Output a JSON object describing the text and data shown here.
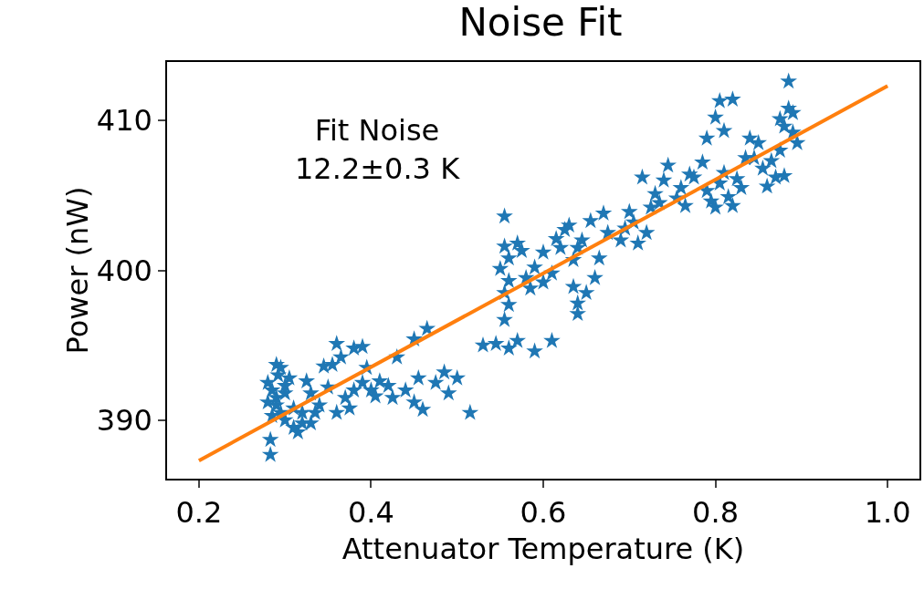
{
  "chart_data": {
    "type": "scatter",
    "title": "Noise Fit",
    "xlabel": "Attenuator Temperature (K)",
    "ylabel": "Power (nW)",
    "xlim": [
      0.163,
      1.037
    ],
    "xticks": [
      {
        "value": 0.2,
        "label": "0.2"
      },
      {
        "value": 0.4,
        "label": "0.4"
      },
      {
        "value": 0.6,
        "label": "0.6"
      },
      {
        "value": 0.8,
        "label": "0.8"
      },
      {
        "value": 1.0,
        "label": "1.0"
      }
    ],
    "ylim": [
      386.1,
      413.9
    ],
    "yticks": [
      390,
      400,
      410
    ],
    "grid": false,
    "annotations": [
      "Fit Noise\n12.2±0.3 K"
    ],
    "series": [
      {
        "marker": "star",
        "color": "#1f77b4",
        "x": [
          0.283,
          0.283,
          0.29,
          0.295,
          0.28,
          0.285,
          0.29,
          0.29,
          0.295,
          0.3,
          0.285,
          0.3,
          0.31,
          0.31,
          0.315,
          0.32,
          0.3,
          0.305,
          0.325,
          0.33,
          0.32,
          0.335,
          0.34,
          0.33,
          0.28,
          0.292,
          0.345,
          0.355,
          0.365,
          0.36,
          0.38,
          0.39,
          0.37,
          0.36,
          0.375,
          0.38,
          0.39,
          0.4,
          0.41,
          0.405,
          0.42,
          0.425,
          0.43,
          0.44,
          0.45,
          0.455,
          0.46,
          0.465,
          0.45,
          0.485,
          0.49,
          0.5,
          0.515,
          0.475,
          0.395,
          0.35,
          0.53,
          0.545,
          0.56,
          0.57,
          0.59,
          0.61,
          0.555,
          0.555,
          0.56,
          0.55,
          0.56,
          0.555,
          0.56,
          0.555,
          0.575,
          0.58,
          0.57,
          0.585,
          0.59,
          0.6,
          0.6,
          0.61,
          0.615,
          0.62,
          0.625,
          0.63,
          0.635,
          0.64,
          0.645,
          0.635,
          0.64,
          0.64,
          0.65,
          0.66,
          0.655,
          0.67,
          0.665,
          0.675,
          0.69,
          0.695,
          0.7,
          0.705,
          0.71,
          0.72,
          0.715,
          0.725,
          0.73,
          0.735,
          0.74,
          0.745,
          0.755,
          0.76,
          0.765,
          0.77,
          0.775,
          0.785,
          0.79,
          0.795,
          0.8,
          0.805,
          0.81,
          0.79,
          0.8,
          0.805,
          0.82,
          0.81,
          0.815,
          0.82,
          0.825,
          0.83,
          0.835,
          0.84,
          0.845,
          0.85,
          0.855,
          0.86,
          0.865,
          0.87,
          0.875,
          0.88,
          0.885,
          0.89,
          0.89,
          0.895,
          0.885,
          0.88,
          0.875
        ],
        "values": [
          387.7,
          388.7,
          393.7,
          393.5,
          392.5,
          392,
          391.5,
          391,
          390.5,
          390,
          390.3,
          392.3,
          390.8,
          389.5,
          389.2,
          389.8,
          391.8,
          392.8,
          392.6,
          391.8,
          390.5,
          390.5,
          391,
          389.8,
          391.2,
          393,
          393.6,
          393.7,
          394.2,
          395.1,
          394.8,
          394.9,
          391.5,
          390.5,
          390.8,
          392,
          392.5,
          392,
          392.6,
          391.6,
          392.3,
          391.5,
          394.2,
          392,
          391.2,
          392.8,
          390.7,
          396.1,
          395.4,
          393.2,
          391.8,
          392.8,
          390.5,
          392.5,
          393.5,
          392.2,
          395,
          395.1,
          394.8,
          395.3,
          394.6,
          395.3,
          403.6,
          401.6,
          400.8,
          400.1,
          399.3,
          398.5,
          397.7,
          396.7,
          401.3,
          399.5,
          401.8,
          398.8,
          400.2,
          401.2,
          399.2,
          399.8,
          402.1,
          401.5,
          402.7,
          403,
          400.7,
          401.5,
          402,
          398.9,
          397.8,
          397.1,
          398.5,
          399.5,
          403.3,
          403.8,
          400.8,
          402.5,
          402,
          402.8,
          403.9,
          403.2,
          401.8,
          402.5,
          406.2,
          404.2,
          405.1,
          404.5,
          406,
          407,
          404.8,
          405.5,
          404.3,
          406.4,
          406.2,
          407.2,
          405.3,
          404.6,
          404.2,
          405.8,
          406.5,
          408.8,
          410.2,
          411.3,
          411.4,
          409.3,
          404.9,
          404.3,
          406.1,
          405.5,
          407.5,
          408.8,
          407.5,
          408.5,
          406.8,
          405.6,
          407.3,
          406.2,
          410.1,
          409.6,
          412.6,
          410.5,
          409.2,
          408.5,
          410.8,
          406.3,
          408
        ]
      },
      {
        "type": "line",
        "color": "#ff7f0e",
        "x": [
          0.2,
          1.0
        ],
        "values": [
          387.3,
          412.3
        ]
      }
    ]
  }
}
